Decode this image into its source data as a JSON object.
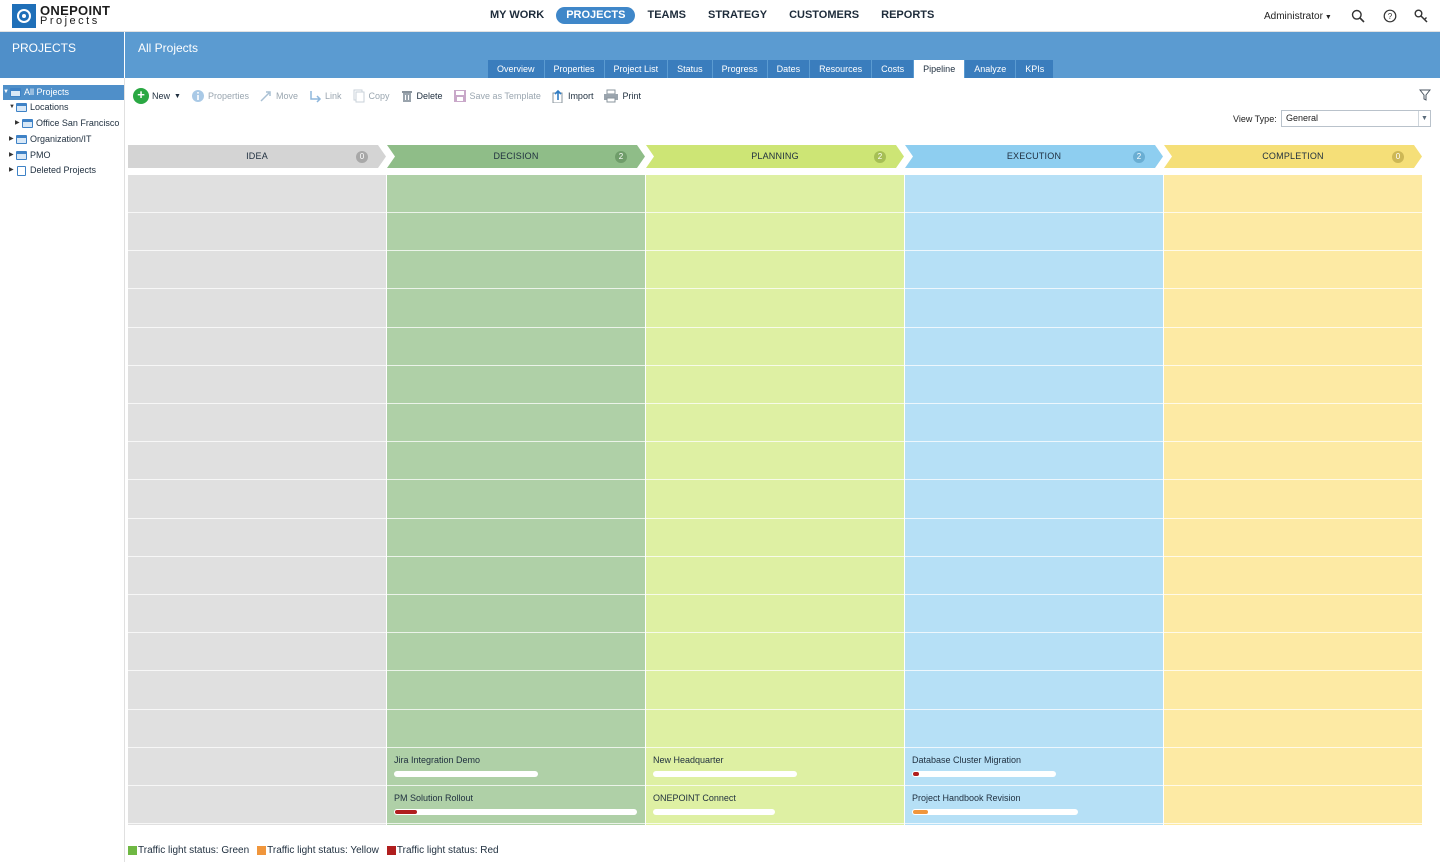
{
  "brand": {
    "line1": "ONEPOINT",
    "line2": "Projects"
  },
  "mainnav": [
    "MY WORK",
    "PROJECTS",
    "TEAMS",
    "STRATEGY",
    "CUSTOMERS",
    "REPORTS"
  ],
  "mainnav_active": "PROJECTS",
  "user": {
    "name": "Administrator"
  },
  "icons": {
    "search": "search-icon",
    "help": "help-icon",
    "key": "key-icon"
  },
  "section_title": "PROJECTS",
  "page_title": "All Projects",
  "tabs": [
    "Overview",
    "Properties",
    "Project List",
    "Status",
    "Progress",
    "Dates",
    "Resources",
    "Costs",
    "Pipeline",
    "Analyze",
    "KPIs"
  ],
  "tabs_active": "Pipeline",
  "tree": {
    "all": "All Projects",
    "locations": "Locations",
    "office": "Office San Francisco",
    "org": "Organization/IT",
    "pmo": "PMO",
    "deleted": "Deleted Projects"
  },
  "toolbar": {
    "new": "New",
    "properties": "Properties",
    "move": "Move",
    "link": "Link",
    "copy": "Copy",
    "delete": "Delete",
    "save_template": "Save as Template",
    "import": "Import",
    "print": "Print"
  },
  "view_type": {
    "label": "View Type:",
    "value": "General"
  },
  "stages": [
    {
      "label": "IDEA",
      "count": "0",
      "head": "#d4d4d4",
      "badge": "#a8a8a8",
      "col": "#e0e0e0",
      "cards": []
    },
    {
      "label": "DECISION",
      "count": "2",
      "head": "#8fbd88",
      "badge": "#6f9d6a",
      "col": "#afd0a7",
      "cards": [
        {
          "name": "Jira Integration Demo",
          "progress": 0.6,
          "status_color": ""
        },
        {
          "name": "PM Solution Rollout",
          "progress": 0.09,
          "status_color": "#b01e1e"
        }
      ]
    },
    {
      "label": "PLANNING",
      "count": "2",
      "head": "#cde575",
      "badge": "#a6bf55",
      "col": "#def0a3",
      "cards": [
        {
          "name": "New Headquarter",
          "progress": 0.55,
          "status_color": ""
        },
        {
          "name": "ONEPOINT Connect",
          "progress": 0.5,
          "status_color": ""
        }
      ]
    },
    {
      "label": "EXECUTION",
      "count": "2",
      "head": "#8ecef0",
      "badge": "#6aaed3",
      "col": "#b6e0f6",
      "cards": [
        {
          "name": "Database Cluster Migration",
          "progress": 0.03,
          "status_color": "#b01e1e"
        },
        {
          "name": "Project Handbook Revision",
          "progress": 0.09,
          "status_color": "#f0963c"
        }
      ]
    },
    {
      "label": "COMPLETION",
      "count": "0",
      "head": "#f5df78",
      "badge": "#cdb856",
      "col": "#fdeaa4",
      "cards": []
    }
  ],
  "legend": [
    {
      "label": "Traffic light status: Green",
      "color": "#6fb843"
    },
    {
      "label": "Traffic light status: Yellow",
      "color": "#f0963c"
    },
    {
      "label": "Traffic light status: Red",
      "color": "#b01e1e"
    }
  ]
}
